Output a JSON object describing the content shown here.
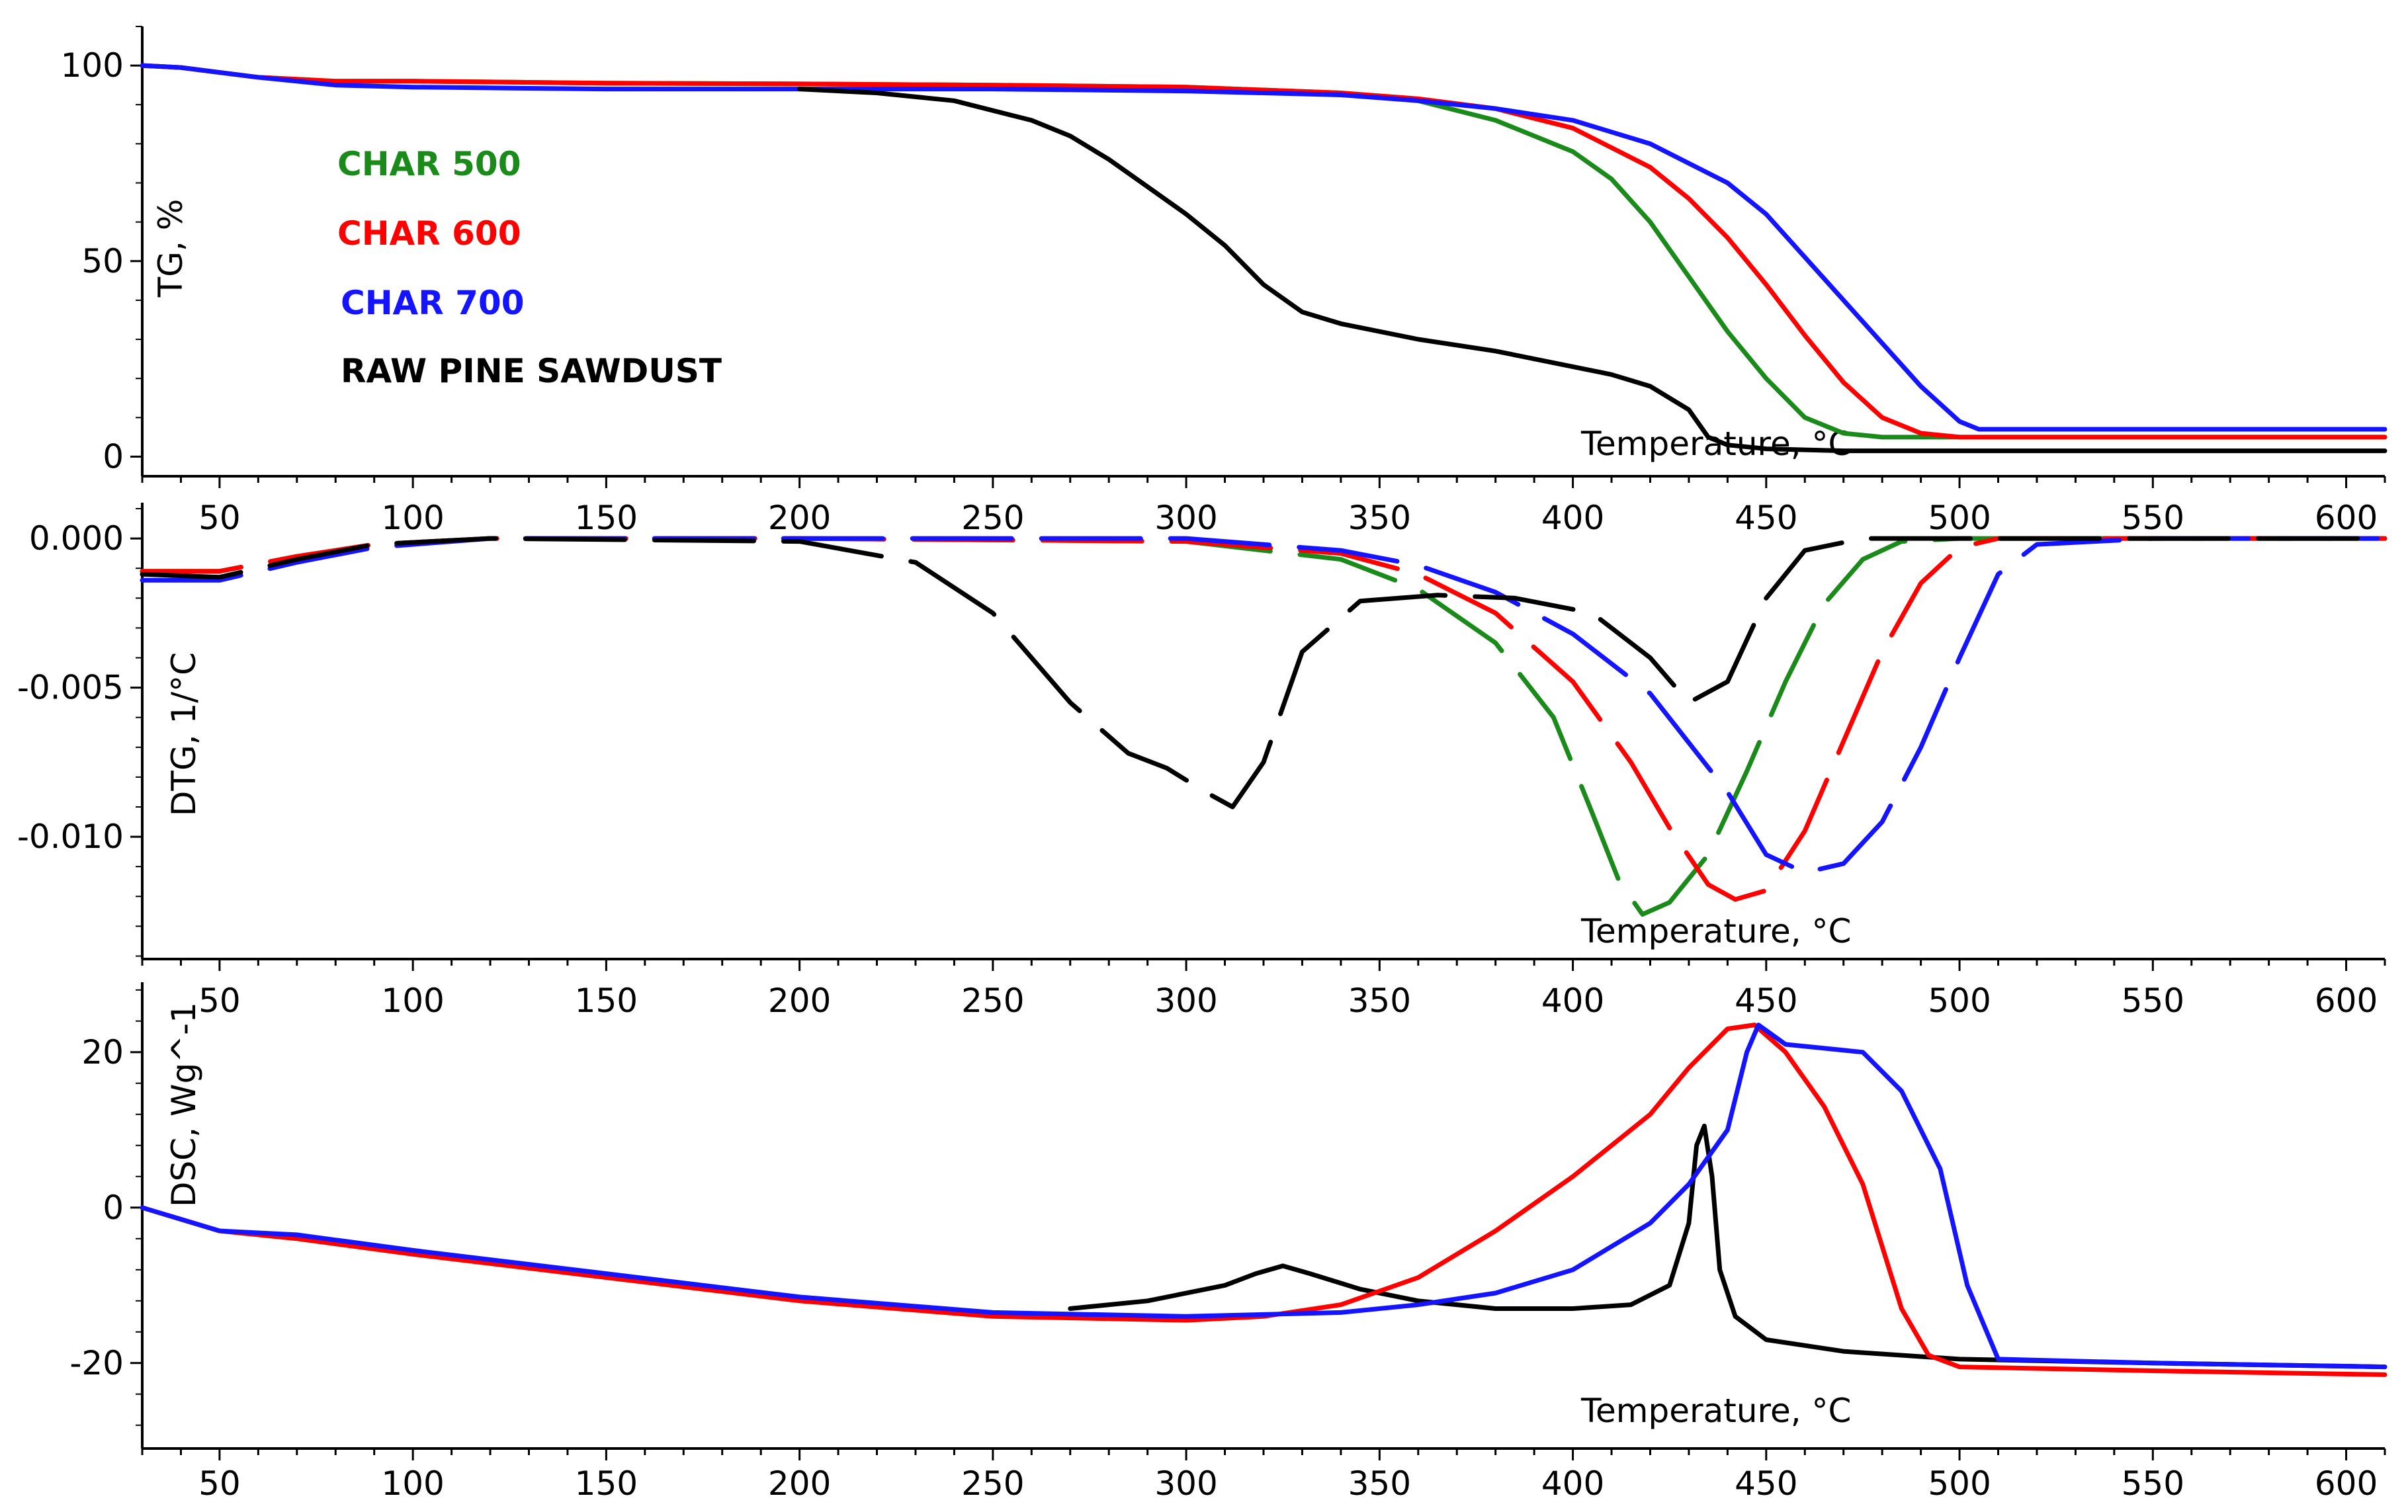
{
  "colors": {
    "char500": "#1a8a1a",
    "char600": "#ff0000",
    "char700": "#1414ff",
    "raw": "#000000",
    "axis": "#000000"
  },
  "legend": [
    {
      "label": "CHAR 500",
      "color": "#1a8a1a"
    },
    {
      "label": "CHAR 600",
      "color": "#ff0000"
    },
    {
      "label": "CHAR 700",
      "color": "#1414ff"
    },
    {
      "label": "RAW PINE SAWDUST",
      "color": "#000000"
    }
  ],
  "chart_data": [
    {
      "type": "line",
      "name": "tg",
      "ylabel": "TG, %",
      "xlabel": "Temperature, °C",
      "xlim": [
        30,
        610
      ],
      "ylim": [
        -5,
        110
      ],
      "xticks": [
        50,
        100,
        150,
        200,
        250,
        300,
        350,
        400,
        450,
        500,
        550,
        600
      ],
      "yticks": [
        0,
        50,
        100
      ],
      "ytick_labels": [
        "0",
        "50",
        "100"
      ],
      "series": [
        {
          "name": "CHAR 500",
          "color": "#1a8a1a",
          "dashed": false,
          "x": [
            30,
            40,
            60,
            80,
            100,
            150,
            200,
            250,
            300,
            340,
            360,
            380,
            400,
            410,
            420,
            430,
            440,
            450,
            460,
            470,
            480,
            500,
            550,
            610
          ],
          "y": [
            100,
            99.5,
            97,
            96,
            96,
            95.5,
            95.3,
            95,
            94.5,
            93,
            91,
            86,
            78,
            71,
            60,
            46,
            32,
            20,
            10,
            6,
            5,
            5,
            5,
            5
          ]
        },
        {
          "name": "CHAR 600",
          "color": "#ff0000",
          "dashed": false,
          "x": [
            30,
            40,
            60,
            80,
            100,
            150,
            200,
            250,
            300,
            340,
            360,
            380,
            400,
            420,
            430,
            440,
            450,
            460,
            470,
            480,
            490,
            500,
            550,
            610
          ],
          "y": [
            100,
            99.5,
            97,
            96,
            96,
            95.5,
            95.3,
            95,
            94.5,
            93,
            91.5,
            89,
            84,
            74,
            66,
            56,
            44,
            31,
            19,
            10,
            6,
            5,
            5,
            5
          ]
        },
        {
          "name": "CHAR 700",
          "color": "#1414ff",
          "dashed": false,
          "x": [
            30,
            40,
            60,
            80,
            100,
            150,
            200,
            250,
            300,
            340,
            360,
            380,
            400,
            420,
            440,
            450,
            460,
            470,
            480,
            490,
            500,
            505,
            550,
            610
          ],
          "y": [
            100,
            99.5,
            97,
            95,
            94.5,
            94,
            94,
            94,
            93.5,
            92.5,
            91,
            89,
            86,
            80,
            70,
            62,
            51,
            40,
            29,
            18,
            9,
            7,
            7,
            7
          ]
        },
        {
          "name": "RAW PINE SAWDUST",
          "color": "#000000",
          "dashed": false,
          "x": [
            200,
            220,
            240,
            260,
            270,
            280,
            290,
            300,
            310,
            320,
            330,
            340,
            360,
            380,
            400,
            410,
            420,
            430,
            435,
            440,
            450,
            470,
            500,
            550,
            610
          ],
          "y": [
            94,
            93,
            91,
            86,
            82,
            76,
            69,
            62,
            54,
            44,
            37,
            34,
            30,
            27,
            23,
            21,
            18,
            12,
            5,
            3,
            2,
            1.5,
            1.5,
            1.5,
            1.5
          ]
        }
      ]
    },
    {
      "type": "line",
      "name": "dtg",
      "ylabel": "DTG, 1/°C",
      "xlabel": "Temperature, °C",
      "xlim": [
        30,
        610
      ],
      "ylim": [
        -0.0141,
        0.0012
      ],
      "xticks": [
        50,
        100,
        150,
        200,
        250,
        300,
        350,
        400,
        450,
        500,
        550,
        600
      ],
      "yticks": [
        0.0,
        -0.005,
        -0.01
      ],
      "ytick_labels": [
        "0.000",
        "-0.005",
        "-0.010"
      ],
      "series": [
        {
          "name": "CHAR 500",
          "color": "#1a8a1a",
          "dashed": true,
          "x": [
            30,
            50,
            70,
            90,
            120,
            200,
            300,
            340,
            360,
            380,
            395,
            405,
            412,
            418,
            425,
            435,
            445,
            455,
            465,
            475,
            485,
            500,
            550,
            610
          ],
          "y": [
            -0.0011,
            -0.0011,
            -0.0006,
            -0.0002,
            0,
            0,
            -0.0001,
            -0.0007,
            -0.0017,
            -0.0035,
            -0.006,
            -0.0092,
            -0.0115,
            -0.0126,
            -0.0122,
            -0.0106,
            -0.0078,
            -0.0048,
            -0.0022,
            -0.0007,
            -0.0001,
            0,
            0,
            0
          ]
        },
        {
          "name": "CHAR 600",
          "color": "#ff0000",
          "dashed": true,
          "x": [
            30,
            50,
            70,
            90,
            120,
            200,
            300,
            340,
            360,
            380,
            400,
            415,
            425,
            435,
            442,
            450,
            460,
            470,
            480,
            490,
            500,
            510,
            550,
            610
          ],
          "y": [
            -0.0011,
            -0.0011,
            -0.0006,
            -0.0002,
            0,
            0,
            -0.0001,
            -0.0005,
            -0.0012,
            -0.0025,
            -0.0048,
            -0.0075,
            -0.0097,
            -0.0116,
            -0.0121,
            -0.0118,
            -0.0098,
            -0.0068,
            -0.0038,
            -0.0015,
            -0.0003,
            0,
            0,
            0
          ]
        },
        {
          "name": "CHAR 700",
          "color": "#1414ff",
          "dashed": true,
          "x": [
            30,
            50,
            70,
            90,
            120,
            200,
            300,
            340,
            360,
            380,
            400,
            420,
            440,
            450,
            460,
            470,
            480,
            490,
            500,
            510,
            520,
            550,
            610
          ],
          "y": [
            -0.0014,
            -0.0014,
            -0.0008,
            -0.0003,
            0,
            0,
            0,
            -0.0004,
            -0.0009,
            -0.0018,
            -0.0032,
            -0.0052,
            -0.0085,
            -0.0106,
            -0.0112,
            -0.0109,
            -0.0095,
            -0.007,
            -0.004,
            -0.0012,
            -0.0002,
            0,
            0
          ]
        },
        {
          "name": "RAW PINE SAWDUST",
          "color": "#000000",
          "dashed": true,
          "x": [
            30,
            50,
            70,
            90,
            120,
            200,
            230,
            250,
            270,
            285,
            295,
            305,
            312,
            320,
            330,
            345,
            365,
            385,
            405,
            420,
            430,
            440,
            450,
            460,
            475,
            500,
            550,
            610
          ],
          "y": [
            -0.0012,
            -0.0013,
            -0.0007,
            -0.0002,
            0,
            -0.0001,
            -0.0008,
            -0.0025,
            -0.0055,
            -0.0072,
            -0.0077,
            -0.0085,
            -0.009,
            -0.0075,
            -0.0038,
            -0.0021,
            -0.0019,
            -0.002,
            -0.0025,
            -0.004,
            -0.0055,
            -0.0048,
            -0.002,
            -0.0004,
            0,
            0,
            0,
            0
          ]
        }
      ]
    },
    {
      "type": "line",
      "name": "dsc",
      "ylabel": "DSC, Wg^-1",
      "xlabel": "Temperature, °C",
      "xlim": [
        30,
        610
      ],
      "ylim": [
        -31,
        29
      ],
      "xticks": [
        50,
        100,
        150,
        200,
        250,
        300,
        350,
        400,
        450,
        500,
        550,
        600
      ],
      "yticks": [
        20,
        0,
        -20
      ],
      "ytick_labels": [
        "20",
        "0",
        "-20"
      ],
      "series": [
        {
          "name": "RAW PINE SAWDUST",
          "color": "#000000",
          "dashed": false,
          "x": [
            270,
            290,
            310,
            318,
            325,
            332,
            345,
            360,
            380,
            400,
            415,
            425,
            430,
            432,
            434,
            436,
            438,
            442,
            450,
            470,
            500,
            550,
            610
          ],
          "y": [
            -13,
            -12,
            -10,
            -8.5,
            -7.5,
            -8.5,
            -10.5,
            -12,
            -13,
            -13,
            -12.5,
            -10,
            -2,
            8,
            10.5,
            4,
            -8,
            -14,
            -17,
            -18.5,
            -19.5,
            -20,
            -20.5
          ]
        },
        {
          "name": "CHAR 600",
          "color": "#ff0000",
          "dashed": false,
          "x": [
            30,
            50,
            70,
            100,
            150,
            200,
            250,
            300,
            320,
            340,
            360,
            380,
            400,
            420,
            430,
            440,
            447,
            455,
            465,
            475,
            485,
            492,
            500,
            550,
            610
          ],
          "y": [
            0,
            -3,
            -4,
            -6,
            -9,
            -12,
            -14,
            -14.5,
            -14,
            -12.5,
            -9,
            -3,
            4,
            12,
            18,
            23,
            23.5,
            20,
            13,
            3,
            -13,
            -19,
            -20.5,
            -21,
            -21.5
          ]
        },
        {
          "name": "CHAR 700",
          "color": "#1414ff",
          "dashed": false,
          "x": [
            30,
            50,
            70,
            100,
            150,
            200,
            250,
            300,
            340,
            360,
            380,
            400,
            420,
            430,
            440,
            445,
            448,
            455,
            465,
            475,
            485,
            495,
            502,
            510,
            550,
            610
          ],
          "y": [
            0,
            -3,
            -3.5,
            -5.5,
            -8.5,
            -11.5,
            -13.5,
            -14,
            -13.5,
            -12.5,
            -11,
            -8,
            -2,
            3,
            10,
            20,
            23.5,
            21,
            20.5,
            20,
            15,
            5,
            -10,
            -19.5,
            -20,
            -20.5
          ]
        }
      ]
    }
  ]
}
